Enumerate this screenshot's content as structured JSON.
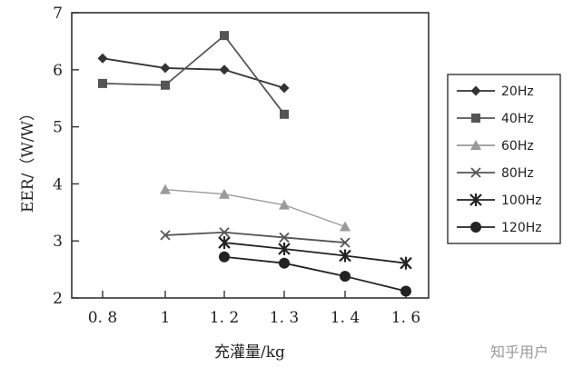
{
  "chart_data": {
    "type": "line",
    "title": "",
    "xlabel": "充灌量/kg",
    "ylabel": "EER/（W/W）",
    "x_tick_labels": [
      "0. 8",
      "1",
      "1. 2",
      "1. 3",
      "1. 4",
      "1. 6"
    ],
    "categories": [
      "0.8",
      "1",
      "1.2",
      "1.3",
      "1.4",
      "1.6"
    ],
    "ylim": [
      2,
      7
    ],
    "y_ticks": [
      2,
      3,
      4,
      5,
      6,
      7
    ],
    "grid": false,
    "legend_position": "right",
    "series": [
      {
        "name": "20Hz",
        "marker": "diamond",
        "color": "#333333",
        "points": [
          {
            "x": "0.8",
            "y": 6.2
          },
          {
            "x": "1",
            "y": 6.03
          },
          {
            "x": "1.2",
            "y": 6.0
          },
          {
            "x": "1.3",
            "y": 5.68
          }
        ]
      },
      {
        "name": "40Hz",
        "marker": "square",
        "color": "#555555",
        "points": [
          {
            "x": "0.8",
            "y": 5.76
          },
          {
            "x": "1",
            "y": 5.73
          },
          {
            "x": "1.2",
            "y": 6.6
          },
          {
            "x": "1.3",
            "y": 5.22
          }
        ]
      },
      {
        "name": "60Hz",
        "marker": "triangle",
        "color": "#9a9a9a",
        "points": [
          {
            "x": "1",
            "y": 3.9
          },
          {
            "x": "1.2",
            "y": 3.82
          },
          {
            "x": "1.3",
            "y": 3.63
          },
          {
            "x": "1.4",
            "y": 3.25
          }
        ]
      },
      {
        "name": "80Hz",
        "marker": "x",
        "color": "#555555",
        "points": [
          {
            "x": "1",
            "y": 3.1
          },
          {
            "x": "1.2",
            "y": 3.15
          },
          {
            "x": "1.3",
            "y": 3.06
          },
          {
            "x": "1.4",
            "y": 2.97
          }
        ]
      },
      {
        "name": "100Hz",
        "marker": "asterisk",
        "color": "#222222",
        "points": [
          {
            "x": "1.2",
            "y": 2.97
          },
          {
            "x": "1.3",
            "y": 2.86
          },
          {
            "x": "1.4",
            "y": 2.74
          },
          {
            "x": "1.6",
            "y": 2.61
          }
        ]
      },
      {
        "name": "120Hz",
        "marker": "circle",
        "color": "#222222",
        "points": [
          {
            "x": "1.2",
            "y": 2.72
          },
          {
            "x": "1.3",
            "y": 2.61
          },
          {
            "x": "1.4",
            "y": 2.38
          },
          {
            "x": "1.6",
            "y": 2.12
          }
        ]
      }
    ]
  },
  "watermark": "知乎用户"
}
